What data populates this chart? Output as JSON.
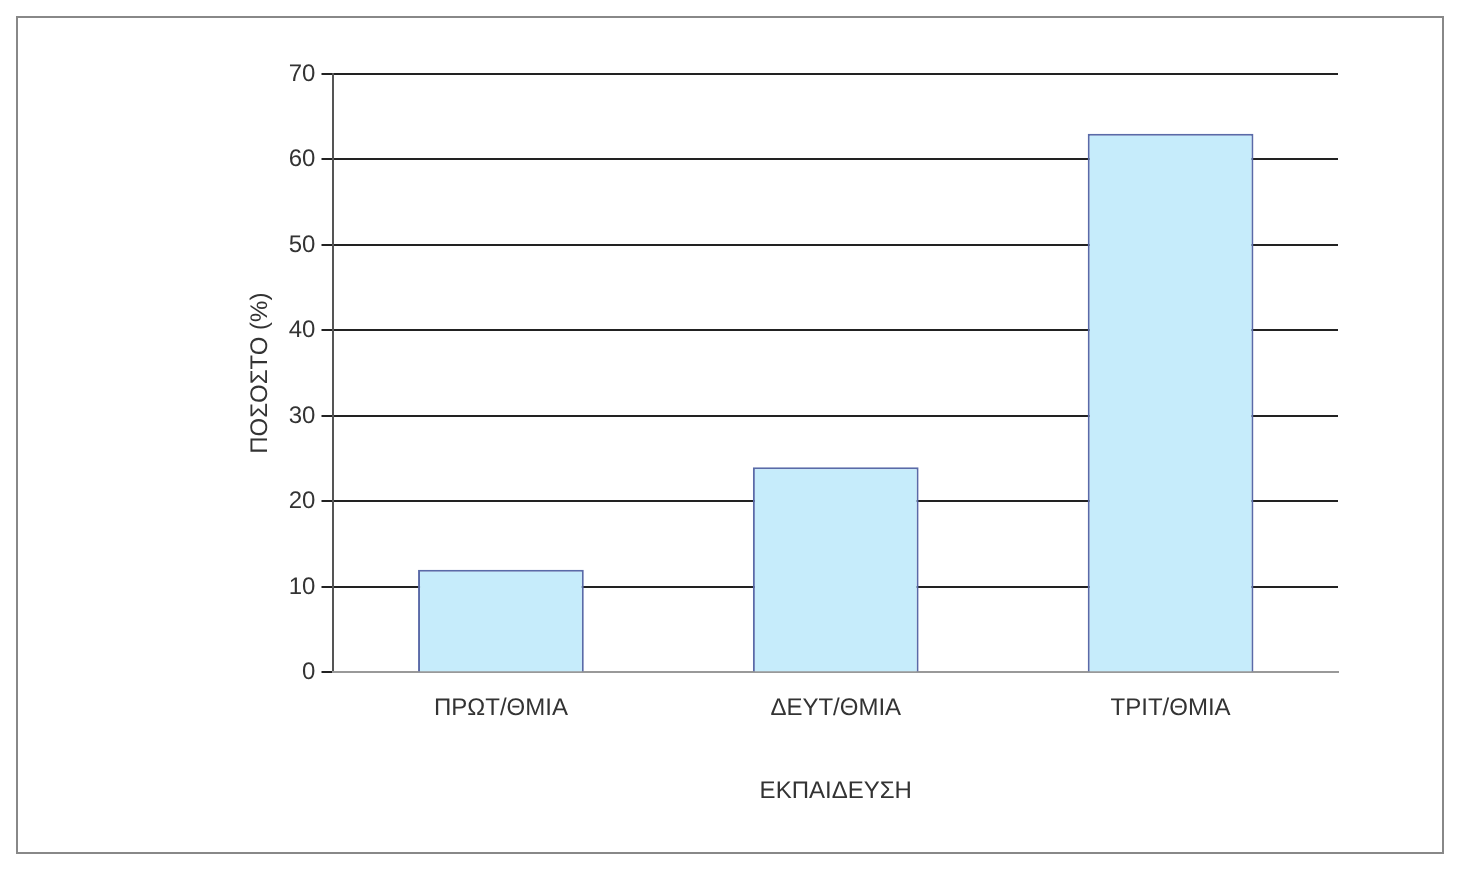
{
  "chart_data": {
    "type": "bar",
    "xlabel": "ΕΚΠΑΙΔΕΥΣΗ",
    "ylabel": "ΠΟΣΟΣΤΟ (%)",
    "categories": [
      "ΠΡΩΤ/ΘΜΙΑ",
      "ΔΕΥΤ/ΘΜΙΑ",
      "ΤΡΙΤ/ΘΜΙΑ"
    ],
    "values": [
      12,
      24,
      63
    ],
    "color": "#c6ecfb",
    "ylim": [
      0,
      70
    ],
    "yticks": [
      0,
      10,
      20,
      30,
      40,
      50,
      60,
      70
    ],
    "grid": "y"
  }
}
